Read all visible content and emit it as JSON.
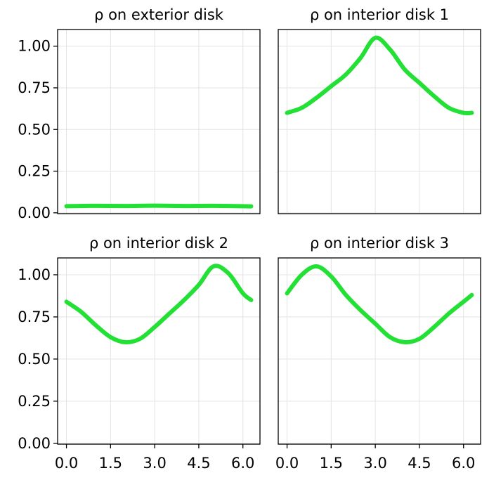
{
  "chart_data": [
    {
      "type": "line",
      "title": "ρ on exterior disk",
      "xlim": [
        -0.3,
        6.58
      ],
      "ylim": [
        -0.005,
        1.1
      ],
      "xticks": [
        0.0,
        1.5,
        3.0,
        4.5,
        6.0
      ],
      "xtick_labels": [
        "0.0",
        "1.5",
        "3.0",
        "4.5",
        "6.0"
      ],
      "yticks": [
        0.0,
        0.25,
        0.5,
        0.75,
        1.0
      ],
      "ytick_labels": [
        "0.00",
        "0.25",
        "0.50",
        "0.75",
        "1.00"
      ],
      "show_xtick_labels": false,
      "show_ytick_labels": true,
      "grid": true,
      "series": [
        {
          "color": "#22e034",
          "x": [
            0.0,
            1.0,
            2.0,
            3.0,
            4.0,
            5.0,
            6.28
          ],
          "y": [
            0.04,
            0.042,
            0.041,
            0.043,
            0.041,
            0.042,
            0.039
          ]
        }
      ]
    },
    {
      "type": "line",
      "title": "ρ on interior disk 1",
      "xlim": [
        -0.3,
        6.58
      ],
      "ylim": [
        -0.005,
        1.1
      ],
      "xticks": [
        0.0,
        1.5,
        3.0,
        4.5,
        6.0
      ],
      "xtick_labels": [
        "0.0",
        "1.5",
        "3.0",
        "4.5",
        "6.0"
      ],
      "yticks": [
        0.0,
        0.25,
        0.5,
        0.75,
        1.0
      ],
      "ytick_labels": [
        "0.00",
        "0.25",
        "0.50",
        "0.75",
        "1.00"
      ],
      "show_xtick_labels": false,
      "show_ytick_labels": false,
      "grid": true,
      "series": [
        {
          "color": "#22e034",
          "x": [
            0.0,
            0.5,
            1.0,
            1.5,
            2.0,
            2.5,
            3.0,
            3.5,
            4.0,
            4.5,
            5.0,
            5.5,
            6.0,
            6.28
          ],
          "y": [
            0.6,
            0.63,
            0.69,
            0.76,
            0.83,
            0.93,
            1.05,
            0.98,
            0.86,
            0.78,
            0.7,
            0.63,
            0.6,
            0.6
          ]
        }
      ]
    },
    {
      "type": "line",
      "title": "ρ on interior disk 2",
      "xlim": [
        -0.3,
        6.58
      ],
      "ylim": [
        -0.005,
        1.1
      ],
      "xticks": [
        0.0,
        1.5,
        3.0,
        4.5,
        6.0
      ],
      "xtick_labels": [
        "0.0",
        "1.5",
        "3.0",
        "4.5",
        "6.0"
      ],
      "yticks": [
        0.0,
        0.25,
        0.5,
        0.75,
        1.0
      ],
      "ytick_labels": [
        "0.00",
        "0.25",
        "0.50",
        "0.75",
        "1.00"
      ],
      "show_xtick_labels": true,
      "show_ytick_labels": true,
      "grid": true,
      "series": [
        {
          "color": "#22e034",
          "x": [
            0.0,
            0.5,
            1.0,
            1.5,
            2.0,
            2.5,
            3.0,
            3.5,
            4.0,
            4.5,
            5.0,
            5.5,
            6.0,
            6.28
          ],
          "y": [
            0.84,
            0.78,
            0.7,
            0.63,
            0.6,
            0.62,
            0.69,
            0.77,
            0.85,
            0.94,
            1.05,
            1.01,
            0.89,
            0.85
          ]
        }
      ]
    },
    {
      "type": "line",
      "title": "ρ on interior disk 3",
      "xlim": [
        -0.3,
        6.58
      ],
      "ylim": [
        -0.005,
        1.1
      ],
      "xticks": [
        0.0,
        1.5,
        3.0,
        4.5,
        6.0
      ],
      "xtick_labels": [
        "0.0",
        "1.5",
        "3.0",
        "4.5",
        "6.0"
      ],
      "yticks": [
        0.0,
        0.25,
        0.5,
        0.75,
        1.0
      ],
      "ytick_labels": [
        "0.00",
        "0.25",
        "0.50",
        "0.75",
        "1.00"
      ],
      "show_xtick_labels": true,
      "show_ytick_labels": false,
      "grid": true,
      "series": [
        {
          "color": "#22e034",
          "x": [
            0.0,
            0.5,
            1.0,
            1.5,
            2.0,
            2.5,
            3.0,
            3.5,
            4.0,
            4.5,
            5.0,
            5.5,
            6.0,
            6.28
          ],
          "y": [
            0.89,
            1.0,
            1.05,
            0.99,
            0.88,
            0.79,
            0.71,
            0.63,
            0.6,
            0.62,
            0.69,
            0.77,
            0.84,
            0.88
          ]
        }
      ]
    }
  ]
}
